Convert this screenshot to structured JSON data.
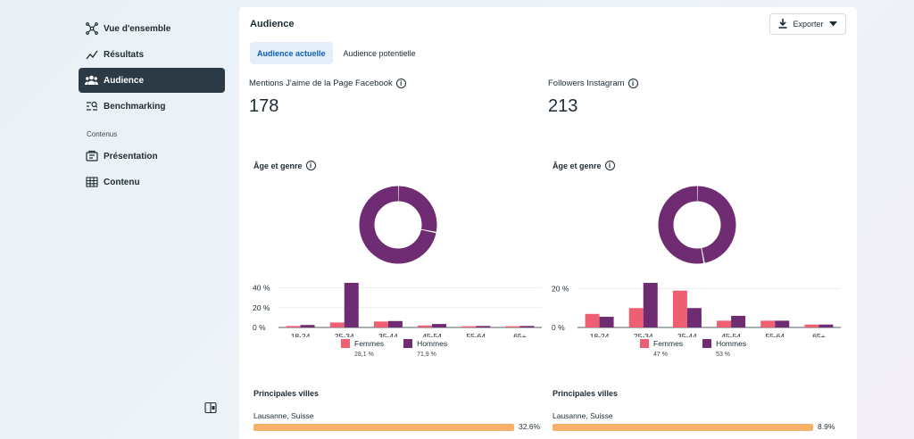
{
  "sidebar": {
    "items": [
      {
        "label": "Vue d'ensemble",
        "icon": "network-icon",
        "active": false
      },
      {
        "label": "Résultats",
        "icon": "trend-line-icon",
        "active": false
      },
      {
        "label": "Audience",
        "icon": "people-icon",
        "active": true
      },
      {
        "label": "Benchmarking",
        "icon": "compare-list-icon",
        "active": false
      }
    ],
    "section_label": "Contenus",
    "content_items": [
      {
        "label": "Présentation",
        "icon": "presentation-icon"
      },
      {
        "label": "Contenu",
        "icon": "table-grid-icon"
      }
    ]
  },
  "header": {
    "title": "Audience",
    "export_label": "Exporter"
  },
  "tabs": [
    {
      "label": "Audience actuelle",
      "active": true
    },
    {
      "label": "Audience potentielle",
      "active": false
    }
  ],
  "colors": {
    "femmes": "#ef5f72",
    "hommes": "#6f2c72",
    "city_bar": "#f6b06a"
  },
  "facebook": {
    "metric_title": "Mentions J'aime de la Page Facebook",
    "metric_value": "178",
    "section_title": "Âge et genre",
    "legend": {
      "femmes": "Femmes",
      "femmes_pct": "28,1 %",
      "hommes": "Hommes",
      "hommes_pct": "71,9 %"
    },
    "cities_title": "Principales villes",
    "city_name": "Lausanne, Suisse",
    "city_pct": "32.6%"
  },
  "instagram": {
    "metric_title": "Followers Instagram",
    "metric_value": "213",
    "section_title": "Âge et genre",
    "legend": {
      "femmes": "Femmes",
      "femmes_pct": "47 %",
      "hommes": "Hommes",
      "hommes_pct": "53 %"
    },
    "cities_title": "Principales villes",
    "city_name": "Lausanne, Suisse",
    "city_pct": "8.9%"
  },
  "chart_data": [
    {
      "type": "bar",
      "categories": [
        "18-24",
        "25-34",
        "35-44",
        "45-54",
        "55-64",
        "65+"
      ],
      "series": [
        {
          "name": "Femmes",
          "values": [
            1.5,
            5,
            6,
            2,
            1.2,
            1.2
          ]
        },
        {
          "name": "Hommes",
          "values": [
            2.5,
            45,
            6.5,
            3.5,
            1.5,
            1.5
          ]
        }
      ],
      "yticks": [
        "0 %",
        "20 %",
        "40 %"
      ],
      "ytick_values": [
        0,
        20,
        40
      ],
      "ylim": [
        0,
        45
      ],
      "donut": {
        "femmes": 28.1,
        "hommes": 71.9
      }
    },
    {
      "type": "bar",
      "categories": [
        "18-24",
        "25-34",
        "35-44",
        "45-54",
        "55-64",
        "65+"
      ],
      "series": [
        {
          "name": "Femmes",
          "values": [
            7,
            10,
            19,
            3.5,
            3.5,
            1.5
          ]
        },
        {
          "name": "Hommes",
          "values": [
            5.5,
            23,
            10,
            6,
            3.5,
            1.5
          ]
        }
      ],
      "yticks": [
        "0 %",
        "20 %"
      ],
      "ytick_values": [
        0,
        20
      ],
      "ylim": [
        0,
        23
      ],
      "donut": {
        "femmes": 47,
        "hommes": 53
      }
    }
  ],
  "city_fraction": {
    "facebook": 1.0,
    "instagram": 1.0
  }
}
